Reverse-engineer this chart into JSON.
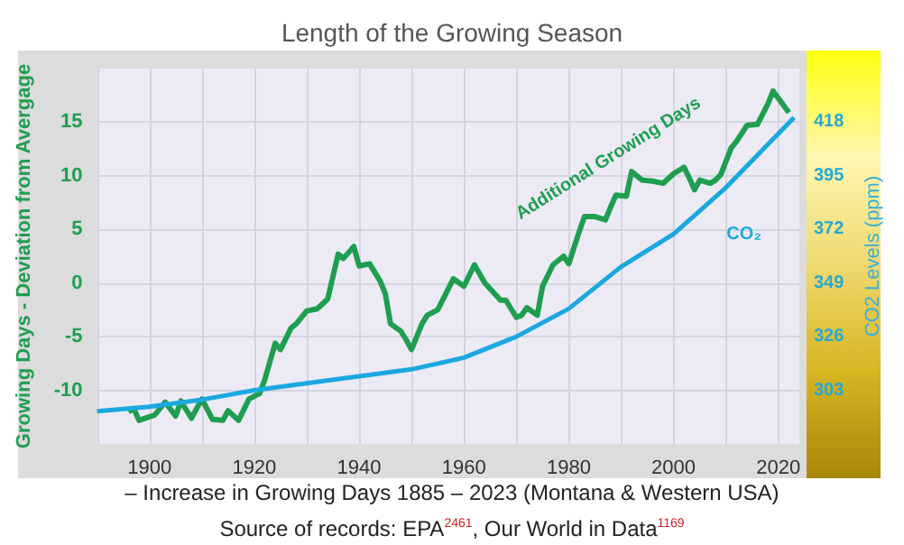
{
  "chart_data": {
    "type": "line",
    "title": "Length of the Growing Season",
    "ylabel": "Growing Days - Deviation from Avergage",
    "y2label": "CO2 Levels (ppm)",
    "xlim": [
      1890,
      2024
    ],
    "xticks": [
      {
        "value": 1890,
        "label": null
      },
      1900,
      {
        "value": 1910,
        "label": null
      },
      1920,
      {
        "value": 1930,
        "label": null
      },
      1940,
      {
        "value": 1950,
        "label": null
      },
      1960,
      {
        "value": 1970,
        "label": null
      },
      1980,
      {
        "value": 1990,
        "label": null
      },
      2000,
      {
        "value": 2010,
        "label": null
      },
      2020
    ],
    "ylim": [
      -15,
      20
    ],
    "yticks": [
      -10,
      -5,
      0,
      5,
      10,
      15
    ],
    "y2lim": [
      280,
      441
    ],
    "y2ticks": [
      303,
      326,
      349,
      372,
      395,
      418
    ],
    "grid": true,
    "marker": "none",
    "series": [
      {
        "name": "Additional Growing Days",
        "color": "#1f9e50",
        "x": [
          1896,
          1897,
          1898,
          1901,
          1903,
          1905,
          1906,
          1908,
          1910,
          1912,
          1914,
          1915,
          1917,
          1919,
          1921,
          1922,
          1924,
          1925,
          1927,
          1928,
          1930,
          1932,
          1934,
          1936,
          1937,
          1939,
          1940,
          1942,
          1944,
          1945,
          1946,
          1948,
          1949,
          1950,
          1952,
          1953,
          1955,
          1958,
          1960,
          1962,
          1964,
          1967,
          1968,
          1970,
          1971,
          1972,
          1974,
          1975,
          1977,
          1979,
          1980,
          1982,
          1983,
          1985,
          1987,
          1988,
          1989,
          1991,
          1992,
          1994,
          1996,
          1998,
          2000,
          2002,
          2003,
          2004,
          2005,
          2007,
          2008,
          2009,
          2011,
          2012,
          2014,
          2016,
          2018,
          2019,
          2022
        ],
        "values": [
          -12.0,
          -11.7,
          -12.8,
          -12.3,
          -11.1,
          -12.4,
          -11.0,
          -12.6,
          -10.8,
          -12.7,
          -12.8,
          -11.9,
          -12.8,
          -10.8,
          -10.3,
          -9.0,
          -5.6,
          -6.2,
          -4.2,
          -3.8,
          -2.6,
          -2.4,
          -1.5,
          2.7,
          2.3,
          3.4,
          1.6,
          1.8,
          0.2,
          -1.0,
          -3.8,
          -4.5,
          -5.3,
          -6.2,
          -3.8,
          -3.0,
          -2.5,
          0.4,
          -0.3,
          1.7,
          0.0,
          -1.6,
          -1.6,
          -3.2,
          -3.0,
          -2.3,
          -3.0,
          -0.3,
          1.7,
          2.5,
          1.8,
          4.8,
          6.2,
          6.2,
          5.9,
          7.1,
          8.2,
          8.1,
          10.4,
          9.6,
          9.5,
          9.3,
          10.2,
          10.8,
          9.8,
          8.7,
          9.6,
          9.3,
          9.6,
          10.1,
          12.6,
          13.2,
          14.7,
          14.8,
          16.7,
          17.9,
          15.9
        ]
      },
      {
        "name": "CO₂",
        "color": "#1ba8e0",
        "axis": "y2",
        "x": [
          1890,
          1900,
          1910,
          1920,
          1930,
          1940,
          1950,
          1960,
          1970,
          1980,
          1990,
          2000,
          2010,
          2023
        ],
        "values": [
          294,
          296,
          299,
          303,
          306,
          309,
          312,
          317,
          326,
          338,
          356,
          370,
          390,
          420
        ]
      }
    ],
    "annotations": [
      "– Increase in Growing Days 1885 – 2023 (Montana & Western USA)",
      "Source of records: EPA$^{2461}$, Our World in Data$^{1169}$"
    ]
  }
}
